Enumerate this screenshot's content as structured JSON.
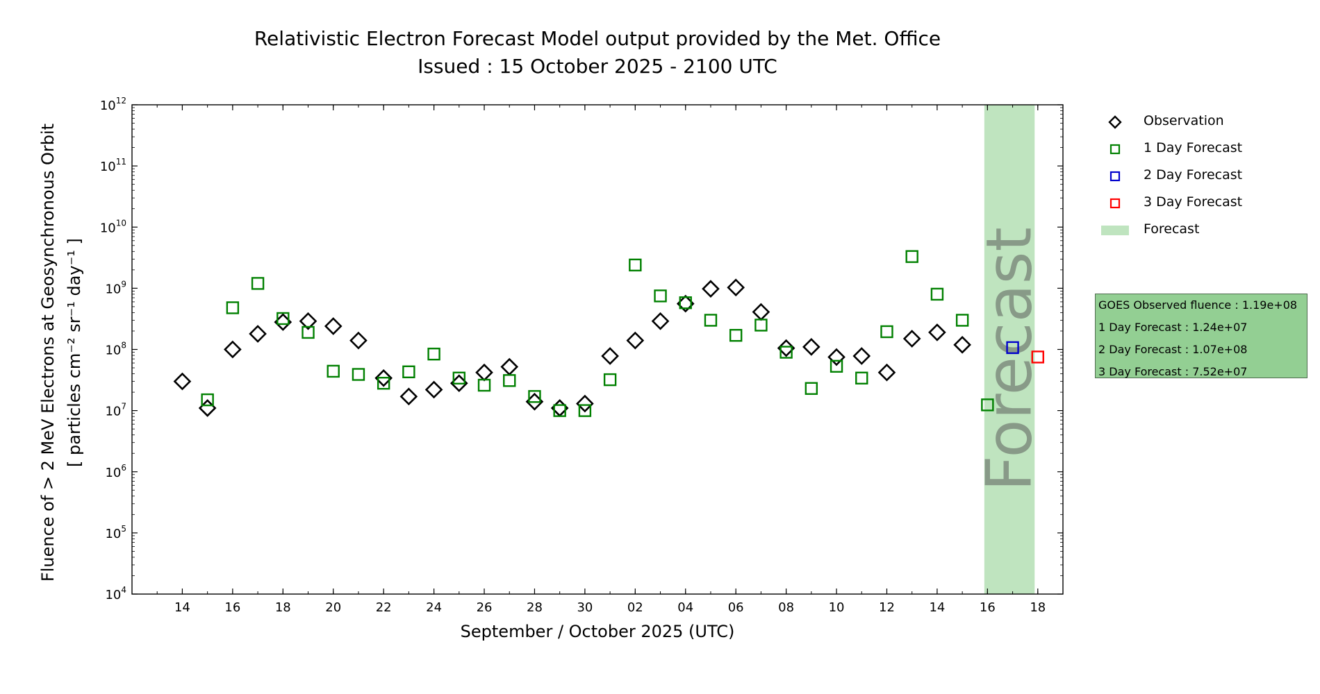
{
  "chart_data": {
    "type": "scatter",
    "title": "Relativistic Electron Forecast Model output provided by the Met. Office",
    "subtitle": "Issued : 15 October 2025 - 2100 UTC",
    "xlabel": "September / October 2025 (UTC)",
    "ylabel_line1": "Fluence of > 2 MeV Electrons at Geosynchronous Orbit",
    "ylabel_line2": "[ particles cm⁻² sr⁻¹ day⁻¹ ]",
    "y_scale": "log",
    "ylim_exponents": [
      4,
      12
    ],
    "y_tick_base": "10",
    "y_tick_exponents": [
      4,
      5,
      6,
      7,
      8,
      9,
      10,
      11,
      12
    ],
    "x_axis": "dates",
    "xlim": [
      "2025-09-12",
      "2025-10-19"
    ],
    "x_ticks": [
      {
        "date": "2025-09-14",
        "label": "14"
      },
      {
        "date": "2025-09-16",
        "label": "16"
      },
      {
        "date": "2025-09-18",
        "label": "18"
      },
      {
        "date": "2025-09-20",
        "label": "20"
      },
      {
        "date": "2025-09-22",
        "label": "22"
      },
      {
        "date": "2025-09-24",
        "label": "24"
      },
      {
        "date": "2025-09-26",
        "label": "26"
      },
      {
        "date": "2025-09-28",
        "label": "28"
      },
      {
        "date": "2025-09-30",
        "label": "30"
      },
      {
        "date": "2025-10-02",
        "label": "02"
      },
      {
        "date": "2025-10-04",
        "label": "04"
      },
      {
        "date": "2025-10-06",
        "label": "06"
      },
      {
        "date": "2025-10-08",
        "label": "08"
      },
      {
        "date": "2025-10-10",
        "label": "10"
      },
      {
        "date": "2025-10-12",
        "label": "12"
      },
      {
        "date": "2025-10-14",
        "label": "14"
      },
      {
        "date": "2025-10-16",
        "label": "16"
      },
      {
        "date": "2025-10-18",
        "label": "18"
      }
    ],
    "forecast_region": {
      "start": "2025-10-15 21:00",
      "end": "2025-10-17 21:00",
      "label": "Forecast",
      "color": "#bfe4bf"
    },
    "series": [
      {
        "name": "Observation",
        "marker": "diamond",
        "color": "#000000",
        "points": [
          {
            "x": "2025-09-14",
            "y": 30000000.0
          },
          {
            "x": "2025-09-15",
            "y": 11000000.0
          },
          {
            "x": "2025-09-16",
            "y": 100000000.0
          },
          {
            "x": "2025-09-17",
            "y": 180000000.0
          },
          {
            "x": "2025-09-18",
            "y": 280000000.0
          },
          {
            "x": "2025-09-19",
            "y": 290000000.0
          },
          {
            "x": "2025-09-20",
            "y": 240000000.0
          },
          {
            "x": "2025-09-21",
            "y": 140000000.0
          },
          {
            "x": "2025-09-22",
            "y": 34000000.0
          },
          {
            "x": "2025-09-23",
            "y": 17000000.0
          },
          {
            "x": "2025-09-24",
            "y": 22000000.0
          },
          {
            "x": "2025-09-25",
            "y": 28000000.0
          },
          {
            "x": "2025-09-26",
            "y": 42000000.0
          },
          {
            "x": "2025-09-27",
            "y": 52000000.0
          },
          {
            "x": "2025-09-28",
            "y": 14000000.0
          },
          {
            "x": "2025-09-29",
            "y": 11000000.0
          },
          {
            "x": "2025-09-30",
            "y": 13000000.0
          },
          {
            "x": "2025-10-01",
            "y": 78000000.0
          },
          {
            "x": "2025-10-02",
            "y": 140000000.0
          },
          {
            "x": "2025-10-03",
            "y": 290000000.0
          },
          {
            "x": "2025-10-04",
            "y": 560000000.0
          },
          {
            "x": "2025-10-05",
            "y": 980000000.0
          },
          {
            "x": "2025-10-06",
            "y": 1030000000.0
          },
          {
            "x": "2025-10-07",
            "y": 410000000.0
          },
          {
            "x": "2025-10-08",
            "y": 105000000.0
          },
          {
            "x": "2025-10-09",
            "y": 110000000.0
          },
          {
            "x": "2025-10-10",
            "y": 75000000.0
          },
          {
            "x": "2025-10-11",
            "y": 78000000.0
          },
          {
            "x": "2025-10-12",
            "y": 42000000.0
          },
          {
            "x": "2025-10-13",
            "y": 150000000.0
          },
          {
            "x": "2025-10-14",
            "y": 190000000.0
          },
          {
            "x": "2025-10-15",
            "y": 119000000.0
          }
        ]
      },
      {
        "name": "1 Day Forecast",
        "marker": "square",
        "color": "#008000",
        "points": [
          {
            "x": "2025-09-15",
            "y": 15000000.0
          },
          {
            "x": "2025-09-16",
            "y": 480000000.0
          },
          {
            "x": "2025-09-17",
            "y": 1200000000.0
          },
          {
            "x": "2025-09-18",
            "y": 320000000.0
          },
          {
            "x": "2025-09-19",
            "y": 190000000.0
          },
          {
            "x": "2025-09-20",
            "y": 44000000.0
          },
          {
            "x": "2025-09-21",
            "y": 39000000.0
          },
          {
            "x": "2025-09-22",
            "y": 28000000.0
          },
          {
            "x": "2025-09-23",
            "y": 43000000.0
          },
          {
            "x": "2025-09-24",
            "y": 84000000.0
          },
          {
            "x": "2025-09-25",
            "y": 34000000.0
          },
          {
            "x": "2025-09-26",
            "y": 26000000.0
          },
          {
            "x": "2025-09-27",
            "y": 31000000.0
          },
          {
            "x": "2025-09-28",
            "y": 17000000.0
          },
          {
            "x": "2025-09-29",
            "y": 10000000.0
          },
          {
            "x": "2025-09-30",
            "y": 10000000.0
          },
          {
            "x": "2025-10-01",
            "y": 32000000.0
          },
          {
            "x": "2025-10-02",
            "y": 2400000000.0
          },
          {
            "x": "2025-10-03",
            "y": 750000000.0
          },
          {
            "x": "2025-10-04",
            "y": 580000000.0
          },
          {
            "x": "2025-10-05",
            "y": 300000000.0
          },
          {
            "x": "2025-10-06",
            "y": 170000000.0
          },
          {
            "x": "2025-10-07",
            "y": 250000000.0
          },
          {
            "x": "2025-10-08",
            "y": 90000000.0
          },
          {
            "x": "2025-10-09",
            "y": 23000000.0
          },
          {
            "x": "2025-10-10",
            "y": 53000000.0
          },
          {
            "x": "2025-10-11",
            "y": 34000000.0
          },
          {
            "x": "2025-10-12",
            "y": 195000000.0
          },
          {
            "x": "2025-10-13",
            "y": 3300000000.0
          },
          {
            "x": "2025-10-14",
            "y": 800000000.0
          },
          {
            "x": "2025-10-15",
            "y": 300000000.0
          },
          {
            "x": "2025-10-16",
            "y": 12400000.0
          }
        ]
      },
      {
        "name": "2 Day Forecast",
        "marker": "square",
        "color": "#0000cc",
        "points": [
          {
            "x": "2025-10-17",
            "y": 107000000.0
          }
        ]
      },
      {
        "name": "3 Day Forecast",
        "marker": "square",
        "color": "#ff0000",
        "points": [
          {
            "x": "2025-10-18",
            "y": 75200000.0
          }
        ]
      }
    ],
    "legend": {
      "placement": "outside-right",
      "items": [
        {
          "label": "Observation",
          "marker": "diamond",
          "color": "#000000"
        },
        {
          "label": "1 Day Forecast",
          "marker": "square",
          "color": "#008000"
        },
        {
          "label": "2 Day Forecast",
          "marker": "square",
          "color": "#0000cc"
        },
        {
          "label": "3 Day Forecast",
          "marker": "square",
          "color": "#ff0000"
        },
        {
          "label": "Forecast",
          "marker": "patch",
          "color": "#bfe4bf"
        }
      ]
    },
    "info_box": [
      "GOES Observed fluence : 1.19e+08",
      "1 Day Forecast : 1.24e+07",
      "2 Day Forecast : 1.07e+08",
      "3 Day Forecast : 7.52e+07"
    ]
  }
}
